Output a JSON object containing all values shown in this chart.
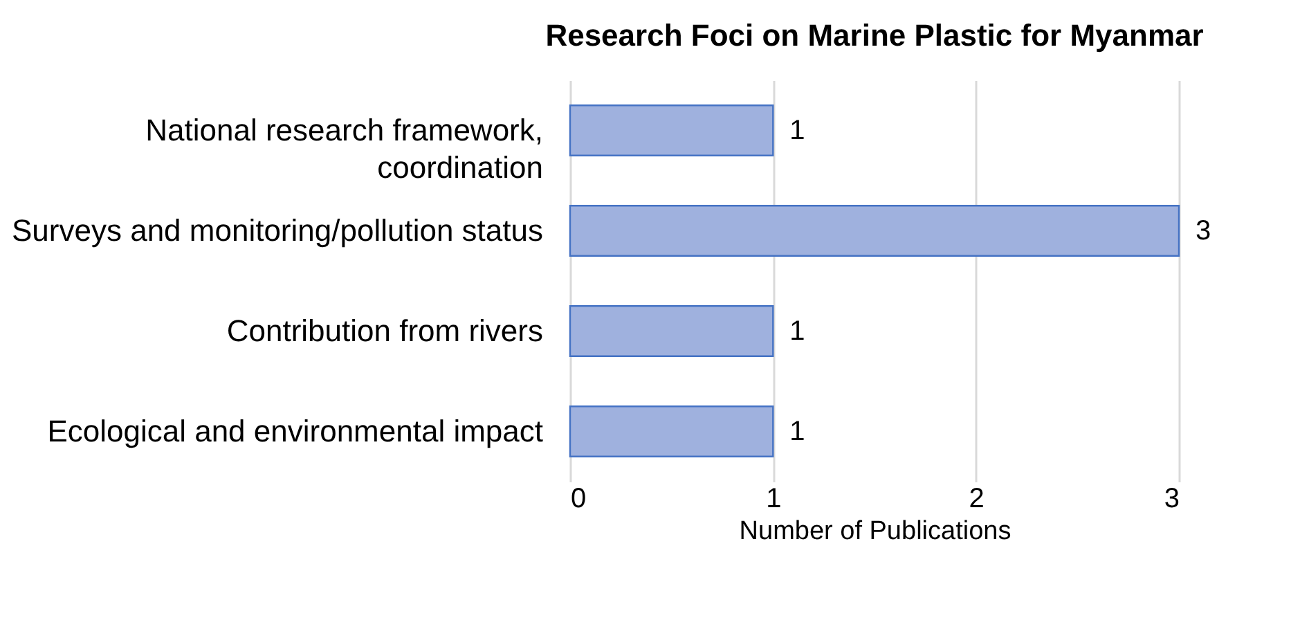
{
  "chart_data": {
    "type": "bar",
    "orientation": "horizontal",
    "title": "Research Foci on Marine Plastic for Myanmar",
    "xlabel": "Number of Publications",
    "categories": [
      "National research framework, coordination",
      "Surveys and monitoring/pollution status",
      "Contribution from rivers",
      "Ecological and environmental impact"
    ],
    "values": [
      1,
      3,
      1,
      1
    ],
    "color": "#9fb1de",
    "xlim": [
      0,
      3
    ],
    "xticks": [
      0,
      1,
      2,
      3
    ],
    "grid": "x",
    "data_labels": true
  }
}
